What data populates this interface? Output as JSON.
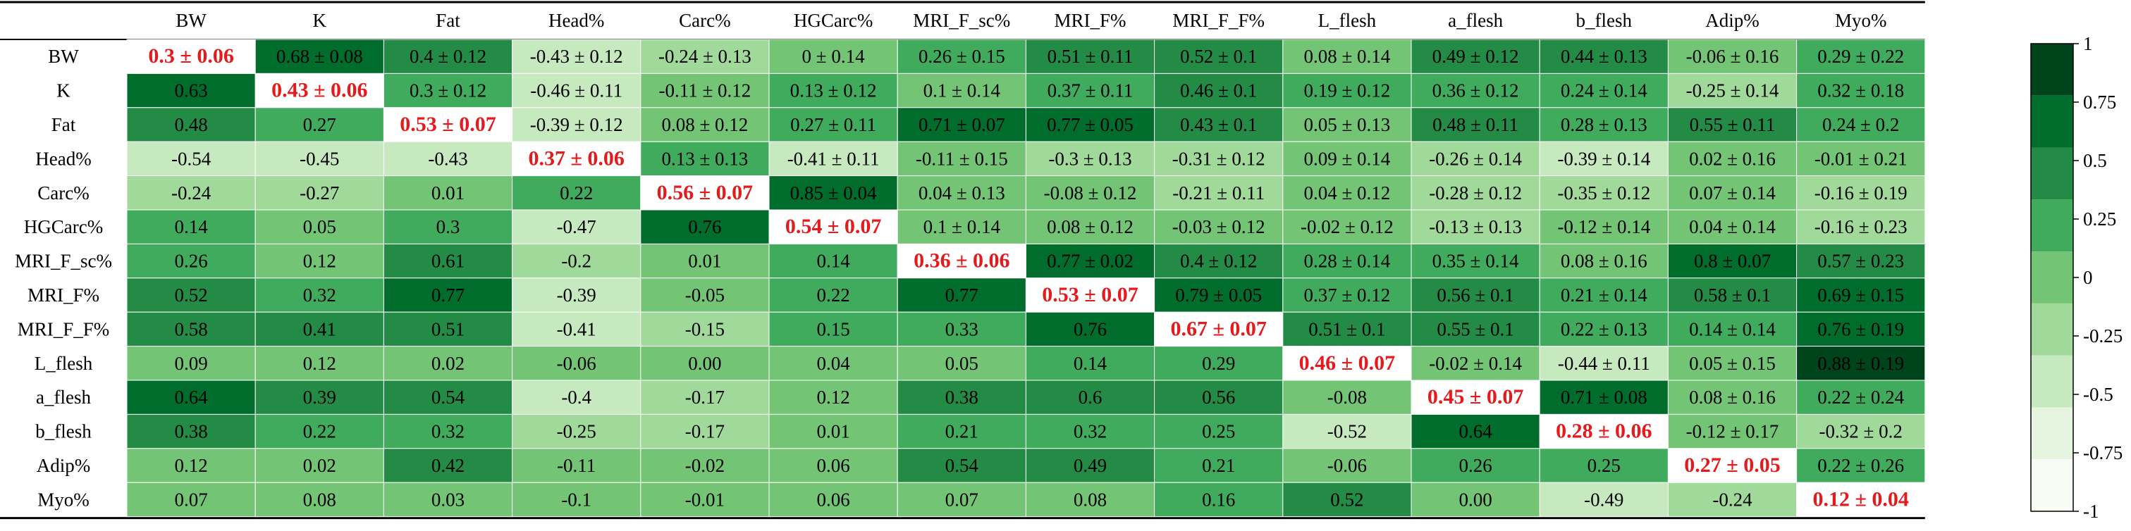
{
  "chart_data": {
    "type": "heatmap",
    "title": "",
    "xlabel": "",
    "ylabel": "",
    "columns": [
      "BW",
      "K",
      "Fat",
      "Head%",
      "Carc%",
      "HGCarc%",
      "MRI_F_sc%",
      "MRI_F%",
      "MRI_F_F%",
      "L_flesh",
      "a_flesh",
      "b_flesh",
      "Adip%",
      "Myo%"
    ],
    "rows": [
      "BW",
      "K",
      "Fat",
      "Head%",
      "Carc%",
      "HGCarc%",
      "MRI_F_sc%",
      "MRI_F%",
      "MRI_F_F%",
      "L_flesh",
      "a_flesh",
      "b_flesh",
      "Adip%",
      "Myo%"
    ],
    "cells": [
      [
        "0.3 ± 0.06",
        "0.68 ± 0.08",
        "0.4 ± 0.12",
        "-0.43 ± 0.12",
        "-0.24 ± 0.13",
        "0 ± 0.14",
        "0.26 ± 0.15",
        "0.51 ± 0.11",
        "0.52 ± 0.1",
        "0.08 ± 0.14",
        "0.49 ± 0.12",
        "0.44 ± 0.13",
        "-0.06 ± 0.16",
        "0.29 ± 0.22"
      ],
      [
        "0.63",
        "0.43 ± 0.06",
        "0.3 ± 0.12",
        "-0.46 ± 0.11",
        "-0.11 ± 0.12",
        "0.13 ± 0.12",
        "0.1 ± 0.14",
        "0.37 ± 0.11",
        "0.46 ± 0.1",
        "0.19 ± 0.12",
        "0.36 ± 0.12",
        "0.24 ± 0.14",
        "-0.25 ± 0.14",
        "0.32 ± 0.18"
      ],
      [
        "0.48",
        "0.27",
        "0.53 ± 0.07",
        "-0.39 ± 0.12",
        "0.08 ± 0.12",
        "0.27 ± 0.11",
        "0.71 ± 0.07",
        "0.77 ± 0.05",
        "0.43 ± 0.1",
        "0.05 ± 0.13",
        "0.48 ± 0.11",
        "0.28 ± 0.13",
        "0.55 ± 0.11",
        "0.24 ± 0.2"
      ],
      [
        "-0.54",
        "-0.45",
        "-0.43",
        "0.37 ± 0.06",
        "0.13 ± 0.13",
        "-0.41 ± 0.11",
        "-0.11 ± 0.15",
        "-0.3 ± 0.13",
        "-0.31 ± 0.12",
        "0.09 ± 0.14",
        "-0.26 ± 0.14",
        "-0.39 ± 0.14",
        "0.02 ± 0.16",
        "-0.01 ± 0.21"
      ],
      [
        "-0.24",
        "-0.27",
        "0.01",
        "0.22",
        "0.56 ± 0.07",
        "0.85 ± 0.04",
        "0.04 ± 0.13",
        "-0.08 ± 0.12",
        "-0.21 ± 0.11",
        "0.04 ± 0.12",
        "-0.28 ± 0.12",
        "-0.35 ± 0.12",
        "0.07 ± 0.14",
        "-0.16 ± 0.19"
      ],
      [
        "0.14",
        "0.05",
        "0.3",
        "-0.47",
        "0.76",
        "0.54 ± 0.07",
        "0.1 ± 0.14",
        "0.08 ± 0.12",
        "-0.03 ± 0.12",
        "-0.02 ± 0.12",
        "-0.13 ± 0.13",
        "-0.12 ± 0.14",
        "0.04 ± 0.14",
        "-0.16 ± 0.23"
      ],
      [
        "0.26",
        "0.12",
        "0.61",
        "-0.2",
        "0.01",
        "0.14",
        "0.36 ± 0.06",
        "0.77 ± 0.02",
        "0.4 ± 0.12",
        "0.28 ± 0.14",
        "0.35 ± 0.14",
        "0.08 ± 0.16",
        "0.8 ± 0.07",
        "0.57 ± 0.23"
      ],
      [
        "0.52",
        "0.32",
        "0.77",
        "-0.39",
        "-0.05",
        "0.22",
        "0.77",
        "0.53 ± 0.07",
        "0.79 ± 0.05",
        "0.37 ± 0.12",
        "0.56 ± 0.1",
        "0.21 ± 0.14",
        "0.58 ± 0.1",
        "0.69 ± 0.15"
      ],
      [
        "0.58",
        "0.41",
        "0.51",
        "-0.41",
        "-0.15",
        "0.15",
        "0.33",
        "0.76",
        "0.67 ± 0.07",
        "0.51 ± 0.1",
        "0.55 ± 0.1",
        "0.22 ± 0.13",
        "0.14 ± 0.14",
        "0.76 ± 0.19"
      ],
      [
        "0.09",
        "0.12",
        "0.02",
        "-0.06",
        "0.00",
        "0.04",
        "0.05",
        "0.14",
        "0.29",
        "0.46 ± 0.07",
        "-0.02 ± 0.14",
        "-0.44 ± 0.11",
        "0.05 ± 0.15",
        "0.88 ± 0.19"
      ],
      [
        "0.64",
        "0.39",
        "0.54",
        "-0.4",
        "-0.17",
        "0.12",
        "0.38",
        "0.6",
        "0.56",
        "-0.08",
        "0.45 ± 0.07",
        "0.71 ± 0.08",
        "0.08 ± 0.16",
        "0.22 ± 0.24"
      ],
      [
        "0.38",
        "0.22",
        "0.32",
        "-0.25",
        "-0.17",
        "0.01",
        "0.21",
        "0.32",
        "0.25",
        "-0.52",
        "0.64",
        "0.28 ± 0.06",
        "-0.12 ± 0.17",
        "-0.32 ± 0.2"
      ],
      [
        "0.12",
        "0.02",
        "0.42",
        "-0.11",
        "-0.02",
        "0.06",
        "0.54",
        "0.49",
        "0.21",
        "-0.06",
        "0.26",
        "0.25",
        "0.27 ± 0.05",
        "0.22 ± 0.26"
      ],
      [
        "0.07",
        "0.08",
        "0.03",
        "-0.1",
        "-0.01",
        "0.06",
        "0.07",
        "0.08",
        "0.16",
        "0.52",
        "0.00",
        "-0.49",
        "-0.24",
        "0.12 ± 0.04"
      ]
    ],
    "color_scale": {
      "range": [
        -1,
        1
      ],
      "ticks": [
        "1",
        "0.75",
        "0.5",
        "0.25",
        "0",
        "-0.25",
        "-0.5",
        "-0.75",
        "-1"
      ],
      "palette": [
        "#f7fcf5",
        "#e5f5e0",
        "#c7e9c0",
        "#a1d99b",
        "#74c476",
        "#41ab5d",
        "#238b45",
        "#006d2c",
        "#00441b"
      ]
    },
    "diagonal_text_color": "#e41a1c"
  }
}
